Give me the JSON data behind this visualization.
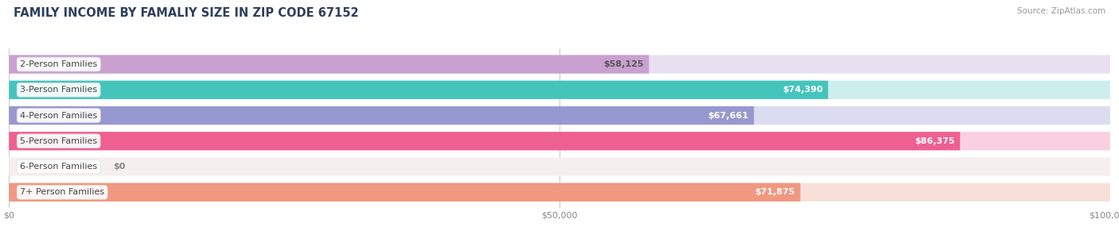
{
  "title": "FAMILY INCOME BY FAMALIY SIZE IN ZIP CODE 67152",
  "source": "Source: ZipAtlas.com",
  "categories": [
    "2-Person Families",
    "3-Person Families",
    "4-Person Families",
    "5-Person Families",
    "6-Person Families",
    "7+ Person Families"
  ],
  "values": [
    58125,
    74390,
    67661,
    86375,
    0,
    71875
  ],
  "bar_colors": [
    "#c9a0d0",
    "#45c4bc",
    "#9898d0",
    "#ee6090",
    "#f5d5a8",
    "#f09880"
  ],
  "bg_colors": [
    "#e8e0f0",
    "#cdeeed",
    "#dcdcf0",
    "#fad0e0",
    "#f5f0ee",
    "#f8e0d8"
  ],
  "label_colors": [
    "#777777",
    "#ffffff",
    "#777777",
    "#ffffff",
    "#777777",
    "#ffffff"
  ],
  "value_label_colors": [
    "#555555",
    "#ffffff",
    "#ffffff",
    "#ffffff",
    "#555555",
    "#ffffff"
  ],
  "xlim": [
    0,
    100000
  ],
  "xticks": [
    0,
    50000,
    100000
  ],
  "xtick_labels": [
    "$0",
    "$50,000",
    "$100,000"
  ],
  "title_color": "#2e3f5c",
  "source_color": "#999999",
  "title_fontsize": 10.5,
  "bar_height": 0.72,
  "label_fontsize": 8.0,
  "value_labels": [
    "$58,125",
    "$74,390",
    "$67,661",
    "$86,375",
    "$0",
    "$71,875"
  ],
  "zero_value_label_color": "#888888"
}
